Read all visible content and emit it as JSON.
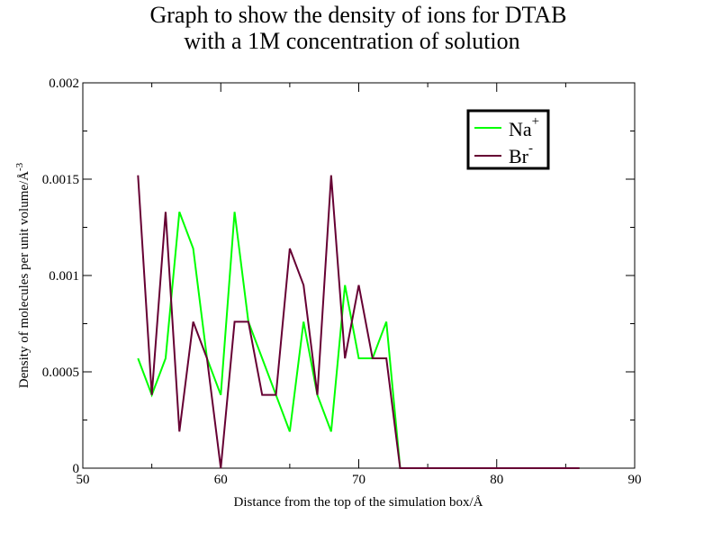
{
  "chart_data": {
    "type": "line",
    "title_line1": "Graph to show the density of ions for DTAB",
    "title_line2": "with a 1M concentration of solution",
    "xlabel": "Distance from the top of the simulation box/Å",
    "ylabel_main": "Density of molecules per unit volume/Å",
    "ylabel_exp": "-3",
    "xlim": [
      50,
      90
    ],
    "ylim": [
      0,
      0.002
    ],
    "xticks": [
      50,
      60,
      70,
      80,
      90
    ],
    "xtick_labels": [
      "50",
      "60",
      "70",
      "80",
      "90"
    ],
    "yticks": [
      0,
      0.0005,
      0.001,
      0.0015,
      0.002
    ],
    "ytick_labels": [
      "0",
      "0.0005",
      "0.001",
      "0.0015",
      "0.002"
    ],
    "grid": false,
    "legend_position": "top-right",
    "series": [
      {
        "name_base": "Na",
        "name_sup": "+",
        "color": "#00ff00",
        "x": [
          54,
          55,
          56,
          57,
          58,
          59,
          60,
          61,
          62,
          63,
          64,
          65,
          66,
          67,
          68,
          69,
          70,
          71,
          72,
          73,
          74,
          75,
          76,
          77,
          78,
          79,
          80,
          81,
          82,
          83,
          84,
          85,
          86
        ],
        "y": [
          0.00057,
          0.00038,
          0.00057,
          0.00133,
          0.00114,
          0.00057,
          0.00038,
          0.00133,
          0.00076,
          0.00057,
          0.00038,
          0.00019,
          0.00076,
          0.00038,
          0.00019,
          0.00095,
          0.00057,
          0.00057,
          0.00076,
          0,
          0,
          0,
          0,
          0,
          0,
          0,
          0,
          0,
          0,
          0,
          0,
          0,
          0
        ]
      },
      {
        "name_base": "Br",
        "name_sup": "-",
        "color": "#660033",
        "x": [
          54,
          55,
          56,
          57,
          58,
          59,
          60,
          61,
          62,
          63,
          64,
          65,
          66,
          67,
          68,
          69,
          70,
          71,
          72,
          73,
          74,
          75,
          76,
          77,
          78,
          79,
          80,
          81,
          82,
          83,
          84,
          85,
          86
        ],
        "y": [
          0.00152,
          0.00038,
          0.00133,
          0.00019,
          0.00076,
          0.00057,
          0,
          0.00076,
          0.00076,
          0.00038,
          0.00038,
          0.00114,
          0.00095,
          0.00038,
          0.00152,
          0.00057,
          0.00095,
          0.00057,
          0.00057,
          0,
          0,
          0,
          0,
          0,
          0,
          0,
          0,
          0,
          0,
          0,
          0,
          0,
          0
        ]
      }
    ]
  }
}
